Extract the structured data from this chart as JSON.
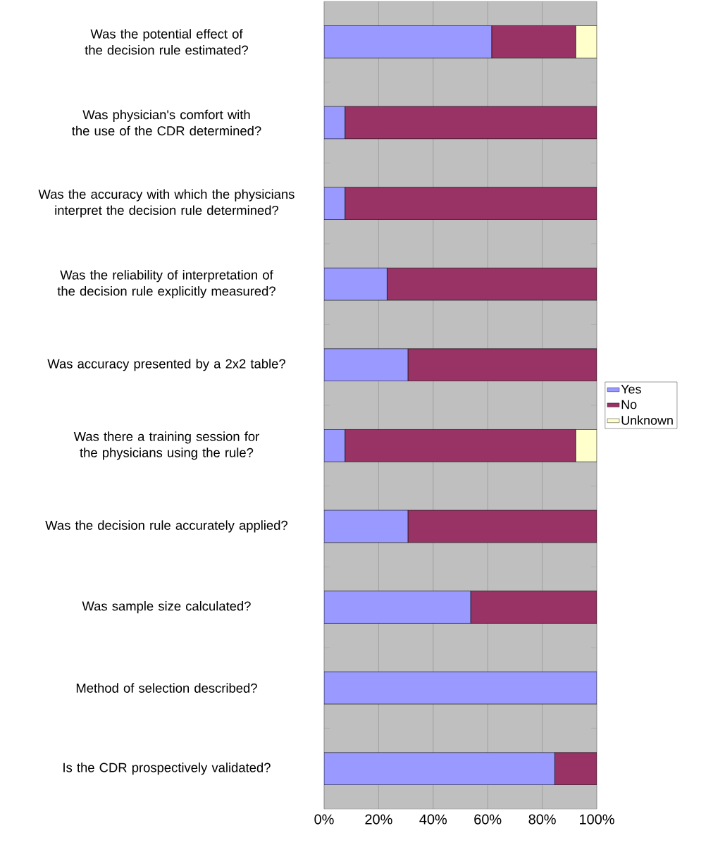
{
  "chart_data": {
    "type": "bar",
    "orientation": "horizontal",
    "stacked": true,
    "categories": [
      "Was the potential effect of the decision rule estimated?",
      "Was physician's comfort with the use of the CDR determined?",
      "Was the accuracy with which the physicians interpret the decision rule determined?",
      "Was the reliability of interpretation of the decision rule explicitly measured?",
      "Was accuracy presented by a 2x2 table?",
      "Was there a training session for the physicians using the rule?",
      "Was the decision rule accurately applied?",
      "Was sample size calculated?",
      "Method of selection described?",
      "Is the CDR prospectively validated?"
    ],
    "series": [
      {
        "name": "Yes",
        "color": "#9999ff",
        "values": [
          61.5,
          7.7,
          7.7,
          23.1,
          30.8,
          7.7,
          30.8,
          53.8,
          100,
          84.6
        ]
      },
      {
        "name": "No",
        "color": "#993366",
        "values": [
          30.8,
          92.3,
          92.3,
          76.9,
          69.2,
          84.6,
          69.2,
          46.2,
          null,
          15.4
        ]
      },
      {
        "name": "Unknown",
        "color": "#ffffcc",
        "values": [
          7.7,
          null,
          null,
          null,
          null,
          7.7,
          null,
          null,
          null,
          null
        ]
      }
    ],
    "xlim": [
      0,
      100
    ],
    "xticks": [
      {
        "value": 0,
        "label": "0%"
      },
      {
        "value": 20,
        "label": "20%"
      },
      {
        "value": 40,
        "label": "40%"
      },
      {
        "value": 60,
        "label": "60%"
      },
      {
        "value": 80,
        "label": "80%"
      },
      {
        "value": 100,
        "label": "100%"
      }
    ],
    "grid": "x",
    "legend": "right"
  }
}
